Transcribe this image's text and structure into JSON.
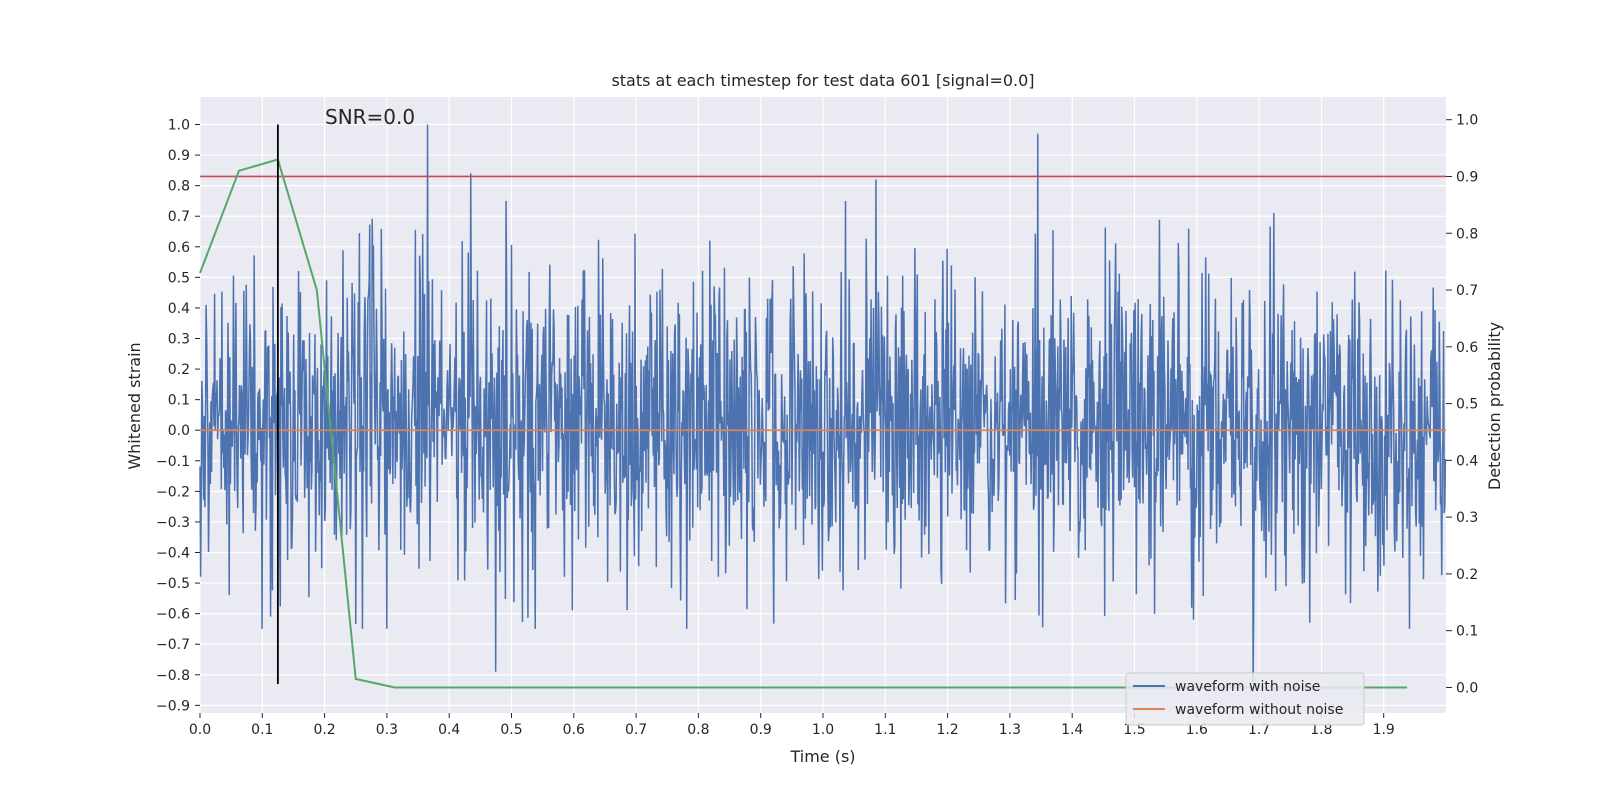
{
  "chart_data": {
    "type": "line",
    "title": "stats at each timestep for test data 601 [signal=0.0]",
    "xlabel": "Time (s)",
    "ylabel_left": "Whitened strain",
    "ylabel_right": "Detection probability",
    "xlim": [
      0.0,
      2.0
    ],
    "ylim_left": [
      -0.925,
      1.09
    ],
    "ylim_right": [
      -0.045,
      1.04
    ],
    "x_ticks": [
      0.0,
      0.1,
      0.2,
      0.3,
      0.4,
      0.5,
      0.6,
      0.7,
      0.8,
      0.9,
      1.0,
      1.1,
      1.2,
      1.3,
      1.4,
      1.5,
      1.6,
      1.7,
      1.8,
      1.9
    ],
    "x_tick_labels": [
      "0.0",
      "0.1",
      "0.2",
      "0.3",
      "0.4",
      "0.5",
      "0.6",
      "0.7",
      "0.8",
      "0.9",
      "1.0",
      "1.1",
      "1.2",
      "1.3",
      "1.4",
      "1.5",
      "1.6",
      "1.7",
      "1.8",
      "1.9"
    ],
    "y_left_ticks": [
      1.0,
      0.9,
      0.8,
      0.7,
      0.6,
      0.5,
      0.4,
      0.3,
      0.2,
      0.1,
      0.0,
      -0.1,
      -0.2,
      -0.3,
      -0.4,
      -0.5,
      -0.6,
      -0.7,
      -0.8,
      -0.9
    ],
    "y_left_tick_labels": [
      "1.0",
      "0.9",
      "0.8",
      "0.7",
      "0.6",
      "0.5",
      "0.4",
      "0.3",
      "0.2",
      "0.1",
      "0.0",
      "−0.1",
      "−0.2",
      "−0.3",
      "−0.4",
      "−0.5",
      "−0.6",
      "−0.7",
      "−0.8",
      "−0.9"
    ],
    "y_right_ticks": [
      1.0,
      0.9,
      0.8,
      0.7,
      0.6,
      0.5,
      0.4,
      0.3,
      0.2,
      0.1,
      0.0
    ],
    "y_right_tick_labels": [
      "1.0",
      "0.9",
      "0.8",
      "0.7",
      "0.6",
      "0.5",
      "0.4",
      "0.3",
      "0.2",
      "0.1",
      "0.0"
    ],
    "annotation": "SNR=0.0",
    "vline_x": 0.125,
    "threshold": 0.9,
    "series": [
      {
        "name": "waveform with noise",
        "axis": "left",
        "color": "#4c72b0",
        "n_points": 2048,
        "x_range": [
          0.0,
          2.0
        ],
        "peaks": [
          [
            0.365,
            1.0
          ],
          [
            1.345,
            0.97
          ],
          [
            1.69,
            -0.83
          ],
          [
            0.475,
            -0.79
          ],
          [
            0.435,
            0.84
          ],
          [
            1.085,
            0.82
          ]
        ],
        "typical_range": [
          -0.65,
          0.75
        ]
      },
      {
        "name": "waveform without noise",
        "axis": "left",
        "color": "#dd8452",
        "x": [
          0.0,
          2.0
        ],
        "y": [
          0.0,
          0.0
        ]
      },
      {
        "name": "detection probability",
        "axis": "right",
        "color": "#55a868",
        "x": [
          0.0,
          0.0625,
          0.125,
          0.1875,
          0.25,
          0.3125,
          0.375,
          0.5,
          0.75,
          1.0,
          1.25,
          1.5,
          1.75,
          1.9375
        ],
        "y": [
          0.73,
          0.91,
          0.93,
          0.7,
          0.015,
          0.0,
          0.0,
          0.0,
          0.0,
          0.0,
          0.0,
          0.0,
          0.0,
          0.0
        ]
      },
      {
        "name": "threshold",
        "axis": "right",
        "color": "#c44e52",
        "x": [
          0.0,
          2.0
        ],
        "y": [
          0.9,
          0.9
        ]
      }
    ],
    "legend": [
      "waveform with noise",
      "waveform without noise"
    ],
    "legend_loc": "lower right",
    "grid": true
  }
}
